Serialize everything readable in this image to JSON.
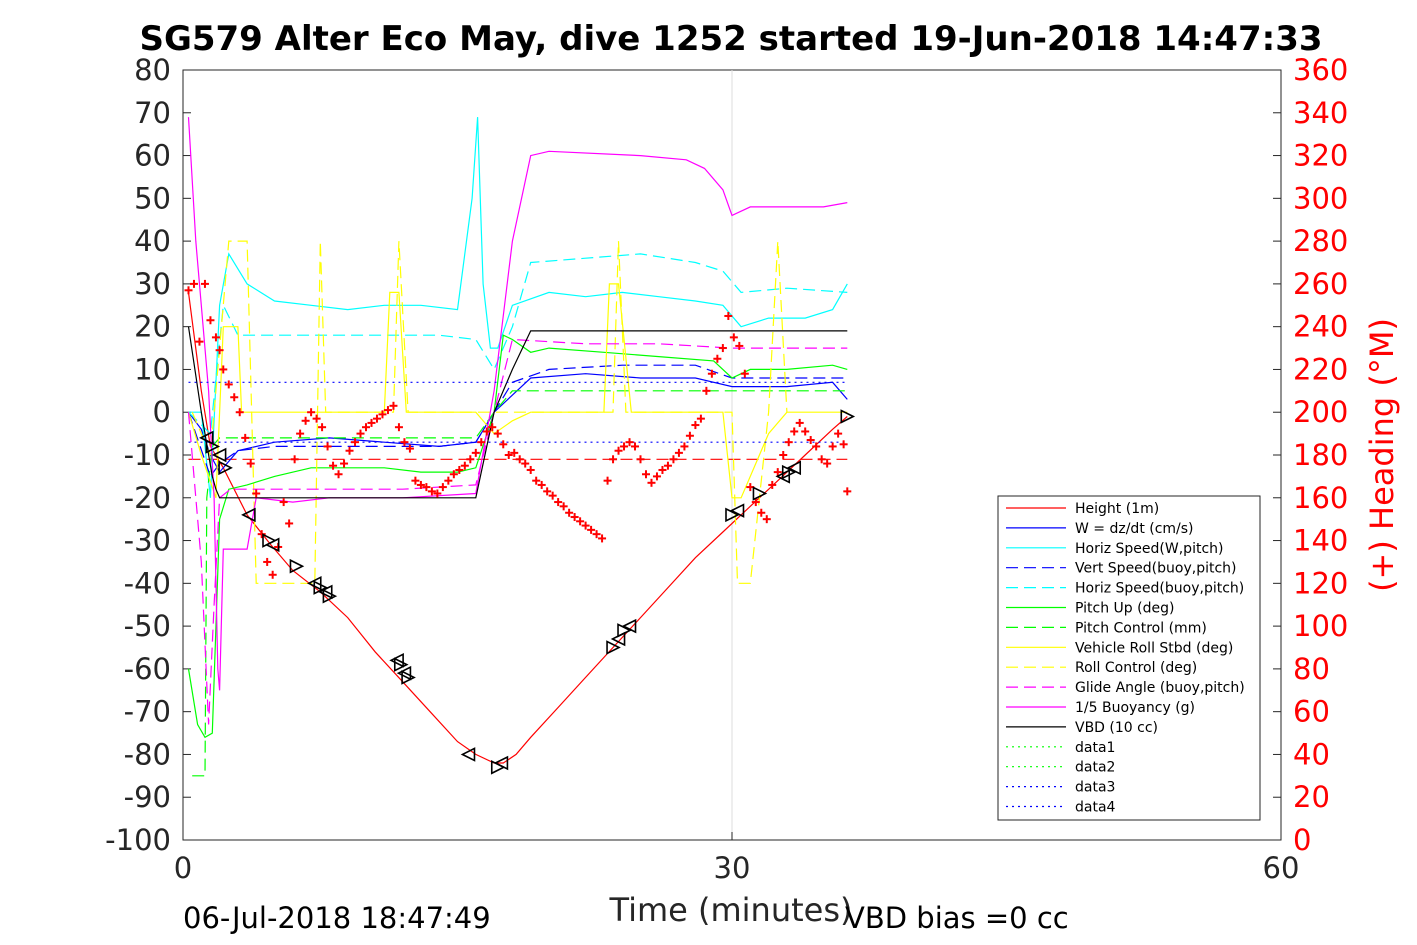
{
  "chart_data": {
    "type": "line",
    "title": "SG579 Alter Eco May, dive 1252 started 19-Jun-2018 14:47:33",
    "xlabel": "Time (minutes)",
    "ylabel_right": "(+) Heading (°M)",
    "footer_left": "06-Jul-2018 18:47:49",
    "footer_right": "VBD bias =0 cc",
    "xlim": [
      0,
      60
    ],
    "ylim": [
      -100,
      80
    ],
    "ylim_right": [
      0,
      360
    ],
    "x_ticks": [
      0,
      30,
      60
    ],
    "x_tick_labels": [
      "0",
      "30",
      "60"
    ],
    "y_ticks": [
      80,
      70,
      60,
      50,
      40,
      30,
      20,
      10,
      0,
      -10,
      -20,
      -30,
      -40,
      -50,
      -60,
      -70,
      -80,
      -90,
      -100
    ],
    "y_tick_labels": [
      "80",
      "70",
      "60",
      "50",
      "40",
      "30",
      "20",
      "10",
      "0",
      "-10",
      "-20",
      "-30",
      "-40",
      "-50",
      "-60",
      "-70",
      "-80",
      "-90",
      "-100"
    ],
    "y_right_ticks": [
      360,
      340,
      320,
      300,
      280,
      260,
      240,
      220,
      200,
      180,
      160,
      140,
      120,
      100,
      80,
      60,
      40,
      20,
      0
    ],
    "y_right_tick_labels": [
      "360",
      "340",
      "320",
      "300",
      "280",
      "260",
      "240",
      "220",
      "200",
      "180",
      "160",
      "140",
      "120",
      "100",
      "80",
      "60",
      "40",
      "20",
      "0"
    ],
    "grid_x": [
      30
    ],
    "legend_position": "lower-right",
    "series": [
      {
        "name": "Height (1m)",
        "color": "#ff0000",
        "style": "solid",
        "x": [
          0.3,
          1.0,
          1.5,
          2.2,
          3.5,
          4.8,
          6.0,
          7.5,
          9.0,
          10.5,
          12.0,
          13.5,
          15.0,
          16.0,
          17.0,
          17.5,
          18.2,
          19.0,
          20.5,
          22.0,
          23.5,
          25.0,
          26.5,
          28.0,
          29.5,
          31.0,
          32.5,
          34.0,
          35.5,
          36.3
        ],
        "y": [
          28,
          5,
          -8,
          -13,
          -24,
          -31,
          -37,
          -42,
          -48,
          -56,
          -63,
          -70,
          -77,
          -80,
          -82,
          -82,
          -80,
          -76,
          -69,
          -62,
          -55,
          -48,
          -41,
          -34,
          -28,
          -22,
          -16,
          -10,
          -4,
          -1
        ]
      },
      {
        "name": "W = dz/dt (cm/s)",
        "color": "#0000ff",
        "style": "solid",
        "x": [
          0.3,
          1.0,
          1.5,
          2.0,
          3.0,
          5.0,
          8.0,
          11.0,
          14.0,
          16.0,
          17.0,
          18.0,
          19.0,
          22.0,
          25.0,
          28.0,
          30.0,
          33.0,
          35.5,
          36.3
        ],
        "y": [
          0,
          -4,
          -10,
          -14,
          -9,
          -7,
          -6,
          -7,
          -8,
          -7,
          0,
          4,
          8,
          9,
          8,
          8,
          6,
          6,
          7,
          3
        ]
      },
      {
        "name": "Horiz Speed(W,pitch)",
        "color": "#00ffff",
        "style": "solid",
        "x": [
          0.3,
          1.0,
          1.5,
          2.0,
          2.5,
          3.5,
          5.0,
          7.0,
          9.0,
          11.0,
          13.0,
          15.0,
          15.8,
          16.1,
          16.4,
          16.8,
          17.2,
          18.0,
          20.0,
          22.0,
          24.0,
          26.0,
          28.0,
          29.5,
          30.5,
          32.0,
          34.0,
          35.5,
          36.3
        ],
        "y": [
          0,
          0,
          -20,
          25,
          37,
          30,
          26,
          25,
          24,
          25,
          25,
          24,
          50,
          69,
          30,
          15,
          15,
          25,
          28,
          27,
          28,
          27,
          26,
          25,
          20,
          22,
          22,
          24,
          30
        ]
      },
      {
        "name": "Vert Speed(buoy,pitch)",
        "color": "#0000ff",
        "style": "dashed",
        "x": [
          0.3,
          1.5,
          2.0,
          3.0,
          5.0,
          8.0,
          11.0,
          14.0,
          16.0,
          17.0,
          18.0,
          20.0,
          24.0,
          28.0,
          30.0,
          33.0,
          36.3
        ],
        "y": [
          0,
          -15,
          -12,
          -9,
          -8,
          -8,
          -8,
          -8,
          -7,
          0,
          7,
          10,
          11,
          11,
          8,
          8,
          8
        ]
      },
      {
        "name": "Horiz Speed(buoy,pitch)",
        "color": "#00ffff",
        "style": "dashed",
        "x": [
          0.3,
          1.5,
          2.2,
          3.0,
          5.0,
          8.0,
          11.0,
          14.0,
          16.0,
          17.0,
          18.0,
          19.0,
          22.0,
          25.0,
          28.0,
          29.5,
          30.5,
          33.0,
          36.3
        ],
        "y": [
          0,
          -5,
          25,
          18,
          18,
          18,
          18,
          18,
          17,
          10,
          20,
          35,
          36,
          37,
          35,
          33,
          28,
          29,
          28
        ]
      },
      {
        "name": "Pitch Up (deg)",
        "color": "#00ff00",
        "style": "solid",
        "x": [
          0.3,
          0.8,
          1.2,
          1.6,
          2.0,
          2.5,
          3.5,
          5.0,
          7.0,
          9.0,
          11.0,
          13.0,
          15.0,
          16.0,
          17.0,
          17.5,
          18.0,
          19.0,
          20.0,
          23.0,
          26.0,
          29.0,
          30.0,
          31.0,
          33.0,
          35.5,
          36.3
        ],
        "y": [
          -60,
          -73,
          -76,
          -75,
          -25,
          -18,
          -17,
          -15,
          -13,
          -13,
          -13,
          -14,
          -14,
          -13,
          0,
          18,
          17,
          14,
          15,
          14,
          13,
          12,
          8,
          10,
          10,
          11,
          10
        ]
      },
      {
        "name": "Pitch Control (mm)",
        "color": "#00ff00",
        "style": "dashed",
        "x": [
          0.5,
          1.2,
          1.3,
          1.6,
          2.0,
          3.0,
          16.0,
          17.0,
          18.0,
          36.3
        ],
        "y": [
          -85,
          -85,
          -20,
          -8,
          -6,
          -6,
          -6,
          0,
          5,
          5
        ]
      },
      {
        "name": "Vehicle Roll Stbd (deg)",
        "color": "#ffff00",
        "style": "solid",
        "x": [
          0.3,
          1.0,
          1.8,
          2.2,
          3.0,
          3.2,
          4.0,
          6.0,
          7.0,
          11.0,
          11.3,
          11.8,
          12.2,
          16.0,
          17.0,
          18.0,
          19.0,
          23.0,
          23.3,
          23.8,
          24.5,
          29.5,
          30.0,
          30.5,
          32.0,
          33.0,
          33.5,
          36.3
        ],
        "y": [
          0,
          -10,
          -20,
          20,
          20,
          0,
          0,
          0,
          0,
          0,
          28,
          28,
          0,
          0,
          -5,
          -2,
          0,
          0,
          30,
          30,
          0,
          0,
          -20,
          -20,
          -5,
          0,
          0,
          0
        ]
      },
      {
        "name": "Roll Control (deg)",
        "color": "#ffff00",
        "style": "dashed",
        "x": [
          0.5,
          1.5,
          2.5,
          3.5,
          4.0,
          7.2,
          7.5,
          7.8,
          11.5,
          11.8,
          12.3,
          16.0,
          17.0,
          23.5,
          23.8,
          24.2,
          30.0,
          30.3,
          31.0,
          32.0,
          32.5,
          33.0
        ],
        "y": [
          0,
          -10,
          40,
          40,
          -40,
          -40,
          40,
          0,
          0,
          40,
          0,
          0,
          0,
          0,
          40,
          0,
          0,
          -40,
          -40,
          0,
          40,
          0
        ]
      },
      {
        "name": "Glide Angle (buoy,pitch)",
        "color": "#ff00ff",
        "style": "dashed",
        "x": [
          0.3,
          1.0,
          1.4,
          1.7,
          2.0,
          2.6,
          4.0,
          8.0,
          12.0,
          16.0,
          17.0,
          18.0,
          22.0,
          26.0,
          30.0,
          33.0,
          36.3
        ],
        "y": [
          0,
          -35,
          -73,
          -45,
          -20,
          -18,
          -18,
          -18,
          -18,
          -17,
          0,
          17,
          16,
          16,
          15,
          15,
          15
        ]
      },
      {
        "name": "1/5 Buoyancy (g)",
        "color": "#ff00ff",
        "style": "solid",
        "x": [
          0.3,
          0.7,
          1.0,
          1.4,
          1.7,
          1.9,
          2.0,
          2.2,
          3.5,
          4.0,
          6.0,
          8.0,
          12.0,
          16.0,
          17.0,
          18.0,
          19.0,
          20.0,
          25.0,
          27.5,
          28.5,
          29.5,
          30.0,
          31.0,
          33.0,
          35.0,
          36.3
        ],
        "y": [
          69,
          40,
          25,
          5,
          -20,
          -60,
          -65,
          -32,
          -32,
          -20,
          -21,
          -20,
          -20,
          -19,
          5,
          40,
          60,
          61,
          60,
          59,
          57,
          52,
          46,
          48,
          48,
          48,
          49
        ]
      },
      {
        "name": "VBD (10 cc)",
        "color": "#000000",
        "style": "solid",
        "x": [
          0.3,
          1.0,
          1.6,
          1.8,
          2.0,
          3.0,
          16.0,
          17.0,
          18.0,
          19.0,
          36.3
        ],
        "y": [
          20,
          0,
          -15,
          -18,
          -20,
          -20,
          -20,
          0,
          10,
          19,
          19
        ]
      },
      {
        "name": "data1",
        "color": "#00ff00",
        "style": "dotted",
        "x": [],
        "y": []
      },
      {
        "name": "data2",
        "color": "#00ff00",
        "style": "dotted",
        "x": [],
        "y": []
      },
      {
        "name": "data3",
        "color": "#0000ff",
        "style": "dotted",
        "x": [
          0.3,
          36.3
        ],
        "y": [
          7,
          7
        ]
      },
      {
        "name": "data4",
        "color": "#0000ff",
        "style": "dotted",
        "x": [
          0.3,
          36.3
        ],
        "y": [
          -7,
          -7
        ]
      }
    ],
    "reference_lines": [
      {
        "color": "#ff0000",
        "style": "dashed",
        "x": [
          0.3,
          36.3
        ],
        "y": [
          -11,
          -11
        ]
      }
    ],
    "heading_points": {
      "color": "#ff0000",
      "marker": "+",
      "axis": "right",
      "x": [
        0.3,
        0.6,
        0.9,
        1.2,
        1.5,
        1.8,
        2.0,
        2.2,
        2.5,
        2.8,
        3.1,
        3.4,
        3.7,
        4.0,
        4.3,
        4.6,
        4.9,
        5.2,
        5.5,
        5.8,
        6.1,
        6.4,
        6.7,
        7.0,
        7.3,
        7.6,
        7.9,
        8.2,
        8.5,
        8.8,
        9.1,
        9.4,
        9.7,
        10.0,
        10.3,
        10.6,
        10.9,
        11.2,
        11.5,
        11.8,
        12.1,
        12.4,
        12.7,
        13.0,
        13.3,
        13.6,
        13.9,
        14.2,
        14.5,
        14.8,
        15.1,
        15.4,
        15.7,
        16.0,
        16.3,
        16.6,
        16.9,
        17.2,
        17.5,
        17.8,
        18.1,
        18.4,
        18.7,
        19.0,
        19.3,
        19.6,
        19.9,
        20.2,
        20.5,
        20.8,
        21.1,
        21.4,
        21.7,
        22.0,
        22.3,
        22.6,
        22.9,
        23.2,
        23.5,
        23.8,
        24.1,
        24.4,
        24.7,
        25.0,
        25.3,
        25.6,
        25.9,
        26.2,
        26.5,
        26.8,
        27.1,
        27.4,
        27.7,
        28.0,
        28.3,
        28.6,
        28.9,
        29.2,
        29.5,
        29.8,
        30.1,
        30.4,
        30.7,
        31.0,
        31.3,
        31.6,
        31.9,
        32.2,
        32.5,
        32.8,
        33.1,
        33.4,
        33.7,
        34.0,
        34.3,
        34.6,
        34.9,
        35.2,
        35.5,
        35.8,
        36.1,
        36.3
      ],
      "y": [
        257,
        260,
        233,
        260,
        243,
        235,
        229,
        220,
        213,
        207,
        200,
        188,
        176,
        162,
        143,
        130,
        124,
        137,
        158,
        148,
        178,
        190,
        196,
        200,
        197,
        193,
        184,
        175,
        171,
        176,
        182,
        186,
        190,
        193,
        195,
        197,
        199,
        201,
        203,
        193,
        186,
        183,
        168,
        166,
        165,
        163,
        162,
        165,
        168,
        171,
        173,
        175,
        178,
        181,
        186,
        191,
        193,
        190,
        185,
        180,
        181,
        178,
        176,
        173,
        168,
        166,
        163,
        161,
        158,
        156,
        153,
        151,
        149,
        147,
        145,
        143,
        141,
        168,
        178,
        182,
        184,
        186,
        184,
        178,
        171,
        167,
        170,
        173,
        175,
        178,
        181,
        184,
        189,
        194,
        197,
        210,
        218,
        225,
        230,
        245,
        235,
        231,
        218,
        165,
        158,
        153,
        150,
        166,
        172,
        180,
        186,
        191,
        195,
        191,
        187,
        184,
        178,
        176,
        184,
        190,
        185,
        163
      ]
    },
    "triangle_markers": {
      "color": "#000000",
      "marker": "triangle",
      "x": [
        1.3,
        1.6,
        2.0,
        2.3,
        3.6,
        4.7,
        4.9,
        6.2,
        7.2,
        7.5,
        7.8,
        8.0,
        11.7,
        11.9,
        12.1,
        12.3,
        15.6,
        17.2,
        17.4,
        23.5,
        23.8,
        24.1,
        24.4,
        30.0,
        30.3,
        31.5,
        32.8,
        33.1,
        33.4,
        36.3
      ],
      "y": [
        -6,
        -8,
        -10,
        -13,
        -24,
        -30,
        -31,
        -36,
        -40,
        -41,
        -42,
        -43,
        -58,
        -59,
        -61,
        -62,
        -80,
        -83,
        -82,
        -55,
        -53,
        -51,
        -50,
        -24,
        -23,
        -19,
        -15,
        -14,
        -13,
        -1
      ]
    }
  }
}
